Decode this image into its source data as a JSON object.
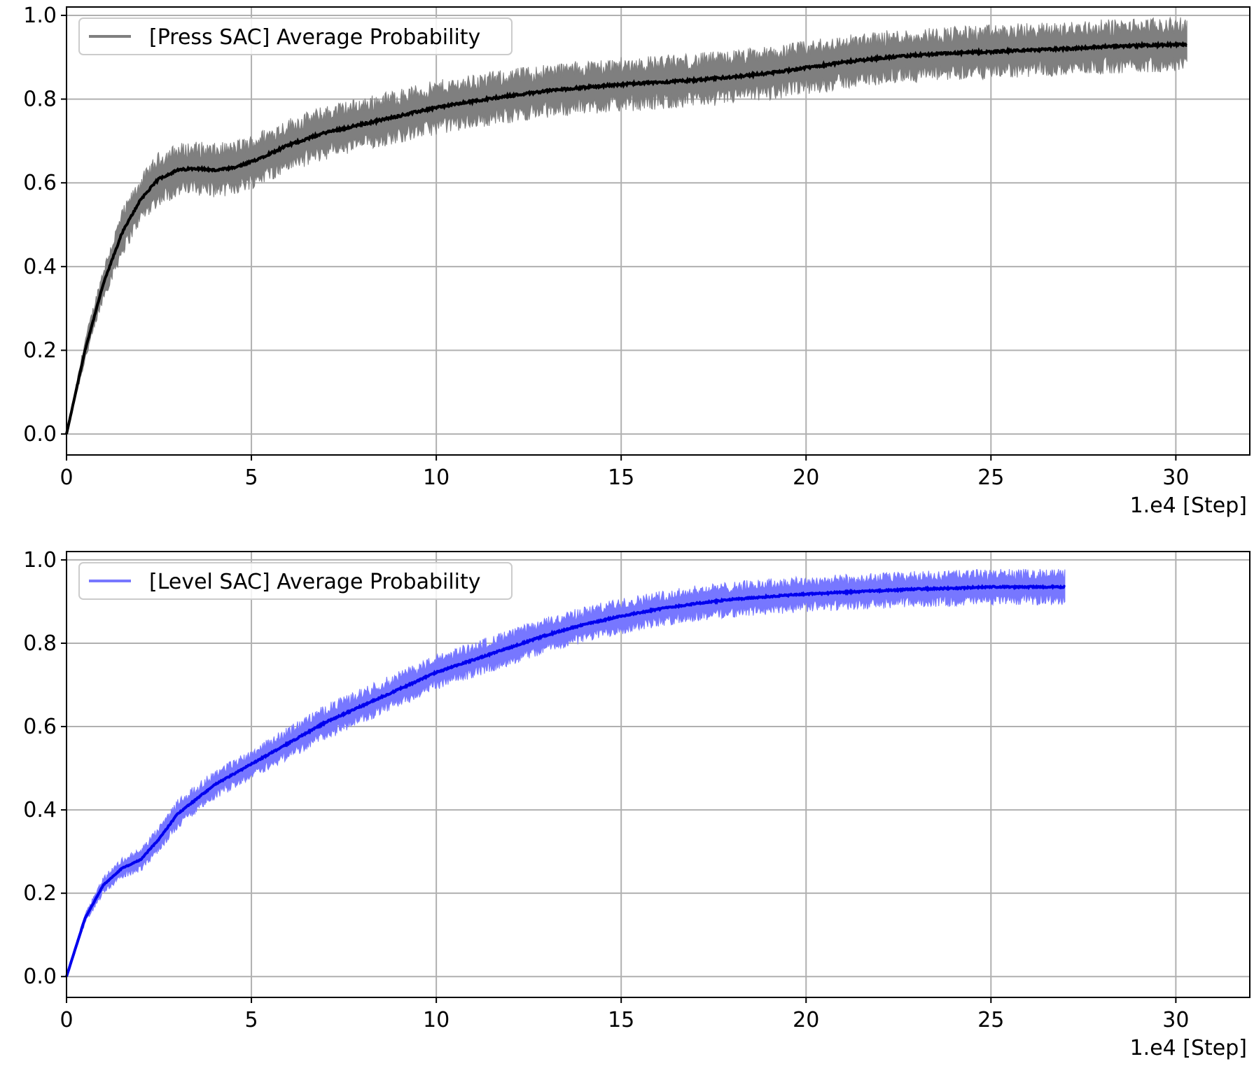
{
  "chart_data": [
    {
      "type": "line",
      "title": "",
      "xlabel": "1.e4 [Step]",
      "ylabel": "",
      "xlim": [
        0,
        32
      ],
      "ylim": [
        -0.05,
        1.02
      ],
      "x_ticks": [
        0,
        5,
        10,
        15,
        20,
        25,
        30
      ],
      "y_ticks": [
        0.0,
        0.2,
        0.4,
        0.6,
        0.8,
        1.0
      ],
      "x_tick_labels": [
        "0",
        "5",
        "10",
        "15",
        "20",
        "25",
        "30"
      ],
      "y_tick_labels": [
        "0.0",
        "0.2",
        "0.4",
        "0.6",
        "0.8",
        "1.0"
      ],
      "grid": true,
      "legend": {
        "position": "top-left",
        "entries": [
          "[Press SAC] Average Probability"
        ]
      },
      "series": [
        {
          "name": "[Press SAC] Average Probability",
          "line_color": "#000000",
          "band_color": "#7f7f7f",
          "x": [
            0,
            0.5,
            1,
            1.5,
            2,
            2.5,
            3,
            3.5,
            4,
            4.5,
            5,
            6,
            7,
            8,
            9,
            10,
            11,
            12,
            13,
            14,
            15,
            16,
            17,
            18,
            19,
            20,
            21,
            22,
            23,
            24,
            25,
            26,
            27,
            28,
            29,
            30,
            30.3
          ],
          "mean": [
            0.0,
            0.2,
            0.36,
            0.48,
            0.56,
            0.61,
            0.63,
            0.635,
            0.63,
            0.635,
            0.65,
            0.69,
            0.72,
            0.74,
            0.76,
            0.78,
            0.795,
            0.808,
            0.82,
            0.828,
            0.835,
            0.84,
            0.845,
            0.853,
            0.862,
            0.875,
            0.888,
            0.898,
            0.905,
            0.91,
            0.913,
            0.917,
            0.92,
            0.925,
            0.928,
            0.93,
            0.93
          ],
          "band_half_width": [
            0.0,
            0.02,
            0.03,
            0.04,
            0.04,
            0.045,
            0.045,
            0.045,
            0.045,
            0.045,
            0.045,
            0.045,
            0.045,
            0.045,
            0.045,
            0.045,
            0.045,
            0.045,
            0.045,
            0.045,
            0.045,
            0.045,
            0.045,
            0.045,
            0.045,
            0.045,
            0.045,
            0.045,
            0.045,
            0.045,
            0.045,
            0.045,
            0.045,
            0.045,
            0.045,
            0.045,
            0.045
          ]
        }
      ]
    },
    {
      "type": "line",
      "title": "",
      "xlabel": "1.e4 [Step]",
      "ylabel": "",
      "xlim": [
        0,
        32
      ],
      "ylim": [
        -0.05,
        1.02
      ],
      "x_ticks": [
        0,
        5,
        10,
        15,
        20,
        25,
        30
      ],
      "y_ticks": [
        0.0,
        0.2,
        0.4,
        0.6,
        0.8,
        1.0
      ],
      "x_tick_labels": [
        "0",
        "5",
        "10",
        "15",
        "20",
        "25",
        "30"
      ],
      "y_tick_labels": [
        "0.0",
        "0.2",
        "0.4",
        "0.6",
        "0.8",
        "1.0"
      ],
      "grid": true,
      "legend": {
        "position": "top-left",
        "entries": [
          "[Level SAC] Average Probability"
        ]
      },
      "series": [
        {
          "name": "[Level SAC] Average Probability",
          "line_color": "#0000ee",
          "band_color": "#7777ff",
          "x": [
            0,
            0.5,
            1,
            1.5,
            2,
            2.5,
            3,
            4,
            5,
            6,
            7,
            8,
            9,
            10,
            11,
            12,
            13,
            14,
            15,
            16,
            17,
            18,
            19,
            20,
            21,
            22,
            23,
            24,
            25,
            26,
            27
          ],
          "mean": [
            0.0,
            0.14,
            0.22,
            0.26,
            0.28,
            0.33,
            0.39,
            0.46,
            0.51,
            0.56,
            0.61,
            0.65,
            0.69,
            0.73,
            0.76,
            0.79,
            0.82,
            0.845,
            0.865,
            0.882,
            0.895,
            0.905,
            0.912,
            0.918,
            0.922,
            0.926,
            0.93,
            0.932,
            0.935,
            0.935,
            0.935
          ],
          "band_half_width": [
            0.0,
            0.01,
            0.015,
            0.018,
            0.02,
            0.022,
            0.025,
            0.025,
            0.025,
            0.028,
            0.03,
            0.03,
            0.03,
            0.03,
            0.03,
            0.03,
            0.03,
            0.03,
            0.03,
            0.03,
            0.03,
            0.03,
            0.03,
            0.03,
            0.03,
            0.03,
            0.03,
            0.03,
            0.03,
            0.03,
            0.03
          ]
        }
      ]
    }
  ]
}
